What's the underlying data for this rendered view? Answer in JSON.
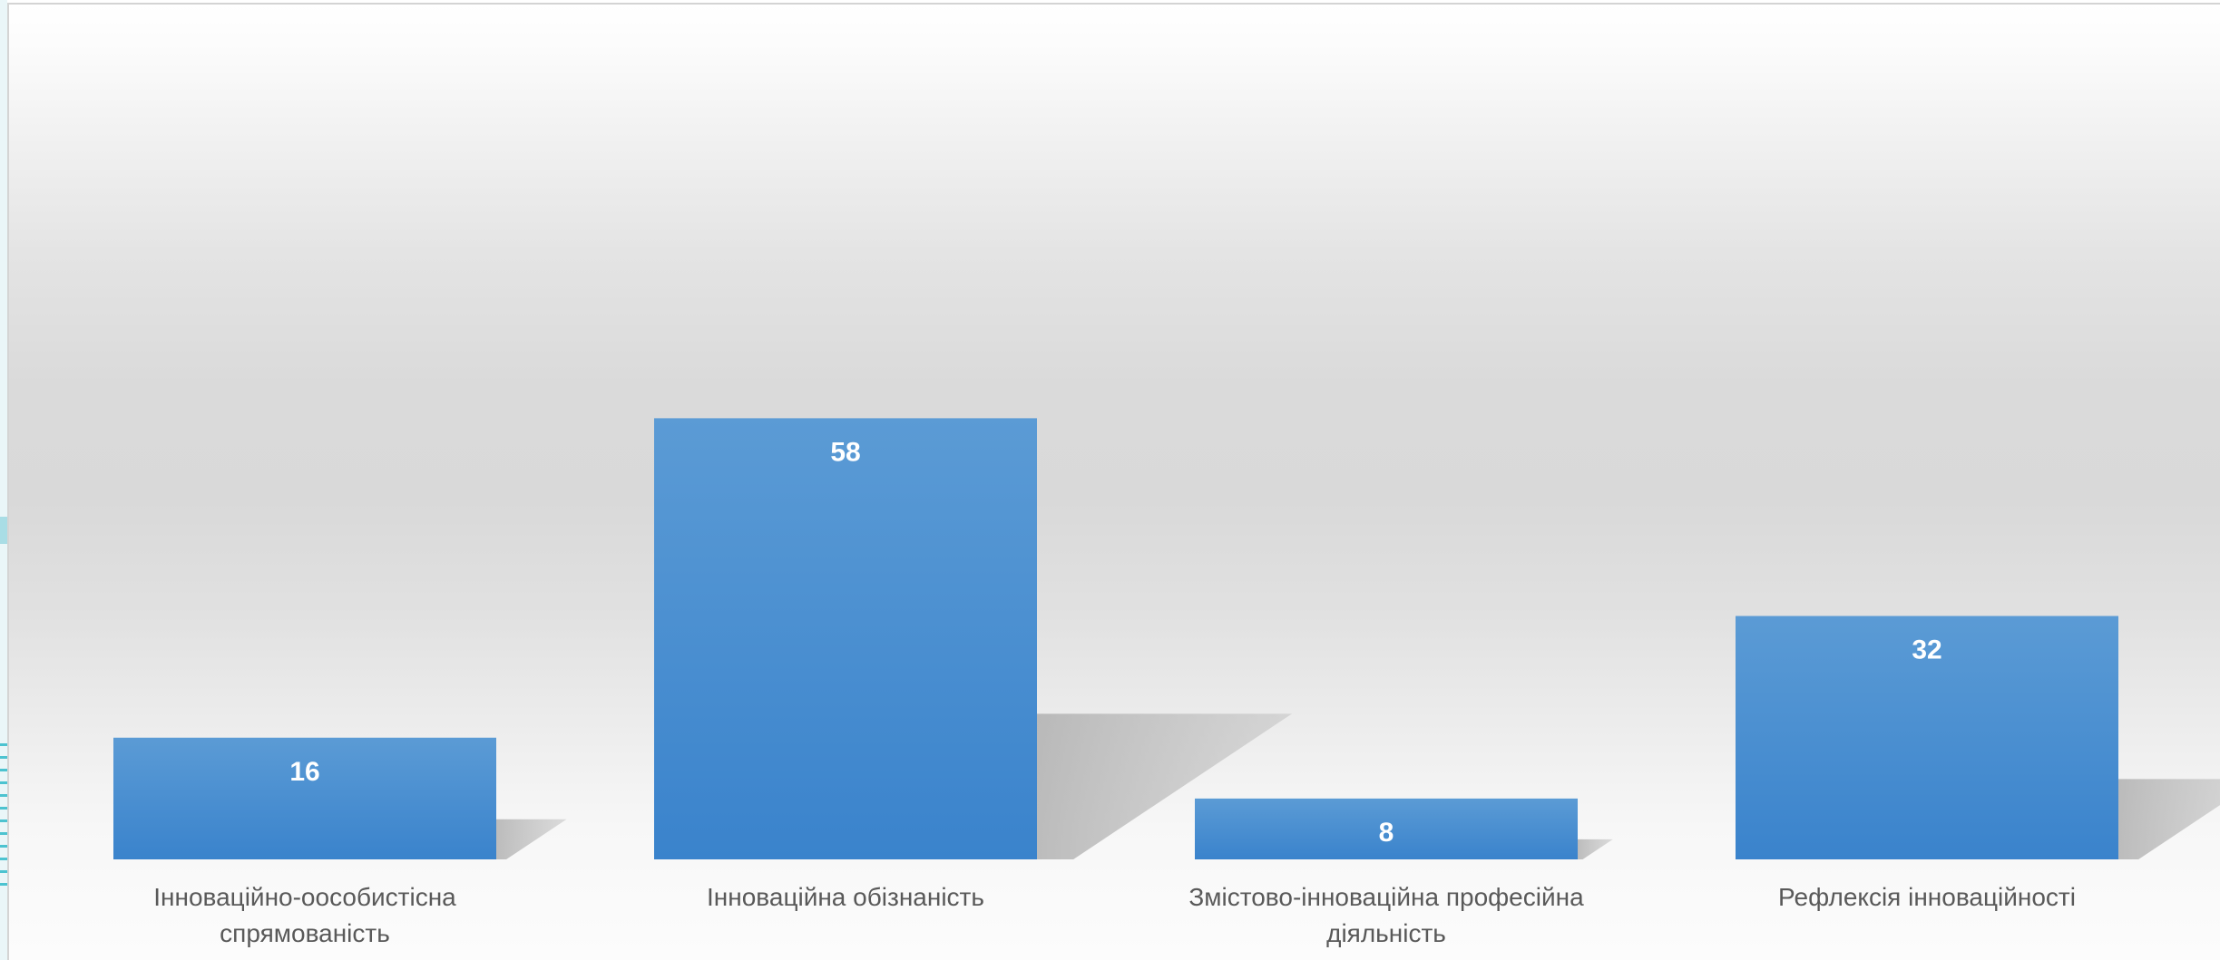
{
  "chart_data": {
    "type": "bar",
    "categories": [
      "Інноваційно-оособистісна спрямованість",
      "Інноваційна обізнаність",
      "Змістово-інноваційна професійна діяльність",
      "Рефлексія інноваційності"
    ],
    "values": [
      16,
      58,
      8,
      32
    ],
    "title": "",
    "xlabel": "",
    "ylabel": "",
    "ylim": [
      0,
      62
    ],
    "grid": false,
    "legend": "none",
    "data_labels": true,
    "bar_color": "#3a83cc",
    "bar_color_top": "#5b9bd5",
    "label_color": "#ffffff",
    "category_label_color": "#595959"
  }
}
